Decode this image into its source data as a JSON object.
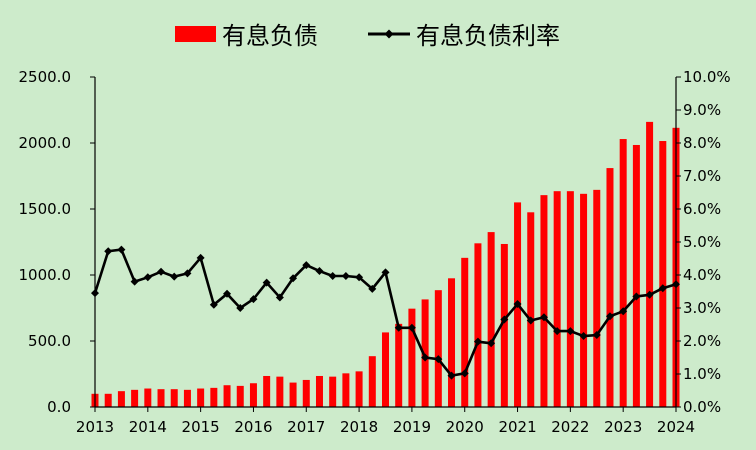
{
  "chart_data": {
    "type": "bar+line",
    "background": "#CDEBCB",
    "legend": {
      "placement": "top",
      "items": [
        {
          "label": "有息负债",
          "kind": "bar",
          "color": "#FF0000"
        },
        {
          "label": "有息负债利率",
          "kind": "line-marker",
          "color": "#000000"
        }
      ]
    },
    "x_ticks": [
      "2013",
      "2014",
      "2015",
      "2016",
      "2017",
      "2018",
      "2019",
      "2020",
      "2021",
      "2022",
      "2023",
      "2024"
    ],
    "x_range": [
      2013.0,
      2024.0
    ],
    "y_left": {
      "ticks": [
        "0.0",
        "500.0",
        "1000.0",
        "1500.0",
        "2000.0",
        "2500.0"
      ],
      "range": [
        0,
        2500
      ]
    },
    "y_right": {
      "ticks": [
        "0.0%",
        "1.0%",
        "2.0%",
        "3.0%",
        "4.0%",
        "5.0%",
        "6.0%",
        "7.0%",
        "8.0%",
        "9.0%",
        "10.0%"
      ],
      "range": [
        0,
        10
      ]
    },
    "x": [
      2013.0,
      2013.25,
      2013.5,
      2013.75,
      2014.0,
      2014.25,
      2014.5,
      2014.75,
      2015.0,
      2015.25,
      2015.5,
      2015.75,
      2016.0,
      2016.25,
      2016.5,
      2016.75,
      2017.0,
      2017.25,
      2017.5,
      2017.75,
      2018.0,
      2018.25,
      2018.5,
      2018.75,
      2019.0,
      2019.25,
      2019.5,
      2019.75,
      2020.0,
      2020.25,
      2020.5,
      2020.75,
      2021.0,
      2021.25,
      2021.5,
      2021.75,
      2022.0,
      2022.25,
      2022.5,
      2022.75,
      2023.0,
      2023.25,
      2023.5,
      2023.75,
      2024.0
    ],
    "series": [
      {
        "name": "有息负债",
        "type": "bar",
        "axis": "left",
        "values": [
          100,
          100,
          120,
          130,
          140,
          135,
          135,
          130,
          140,
          145,
          165,
          160,
          180,
          235,
          230,
          185,
          205,
          235,
          230,
          255,
          270,
          385,
          565,
          630,
          745,
          815,
          885,
          975,
          1130,
          1240,
          1325,
          1235,
          1550,
          1475,
          1605,
          1635,
          1635,
          1615,
          1645,
          1810,
          2030,
          1985,
          2160,
          2015,
          2115
        ]
      },
      {
        "name": "有息负债利率",
        "type": "line",
        "axis": "right",
        "values": [
          3.45,
          4.72,
          4.77,
          3.8,
          3.93,
          4.1,
          3.95,
          4.05,
          4.52,
          3.1,
          3.43,
          3.0,
          3.27,
          3.77,
          3.32,
          3.9,
          4.3,
          4.12,
          3.97,
          3.97,
          3.93,
          3.58,
          4.08,
          2.4,
          2.4,
          1.5,
          1.45,
          0.95,
          1.02,
          1.98,
          1.93,
          2.65,
          3.12,
          2.62,
          2.72,
          2.3,
          2.3,
          2.15,
          2.18,
          2.75,
          2.9,
          3.35,
          3.4,
          3.6,
          3.72
        ]
      }
    ]
  }
}
